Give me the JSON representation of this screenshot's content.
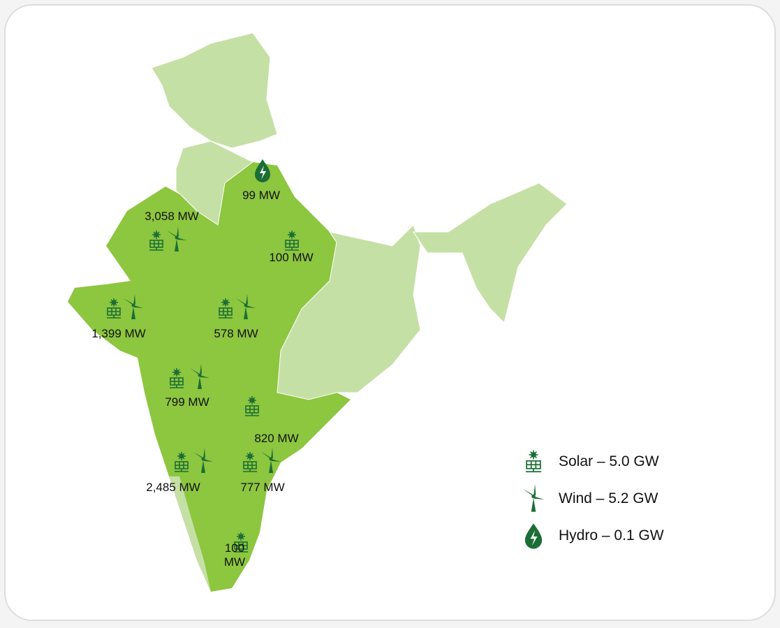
{
  "regions": [
    {
      "label": "99 MW"
    },
    {
      "label": "3,058 MW"
    },
    {
      "label": "100 MW"
    },
    {
      "label": "1,399 MW"
    },
    {
      "label": "578 MW"
    },
    {
      "label": "799 MW"
    },
    {
      "label": "820 MW"
    },
    {
      "label": "2,485 MW"
    },
    {
      "label": "777 MW"
    },
    {
      "label": "100 MW"
    }
  ],
  "legend": [
    {
      "label": "Solar – 5.0 GW"
    },
    {
      "label": "Wind – 5.2 GW"
    },
    {
      "label": "Hydro – 0.1 GW"
    }
  ]
}
